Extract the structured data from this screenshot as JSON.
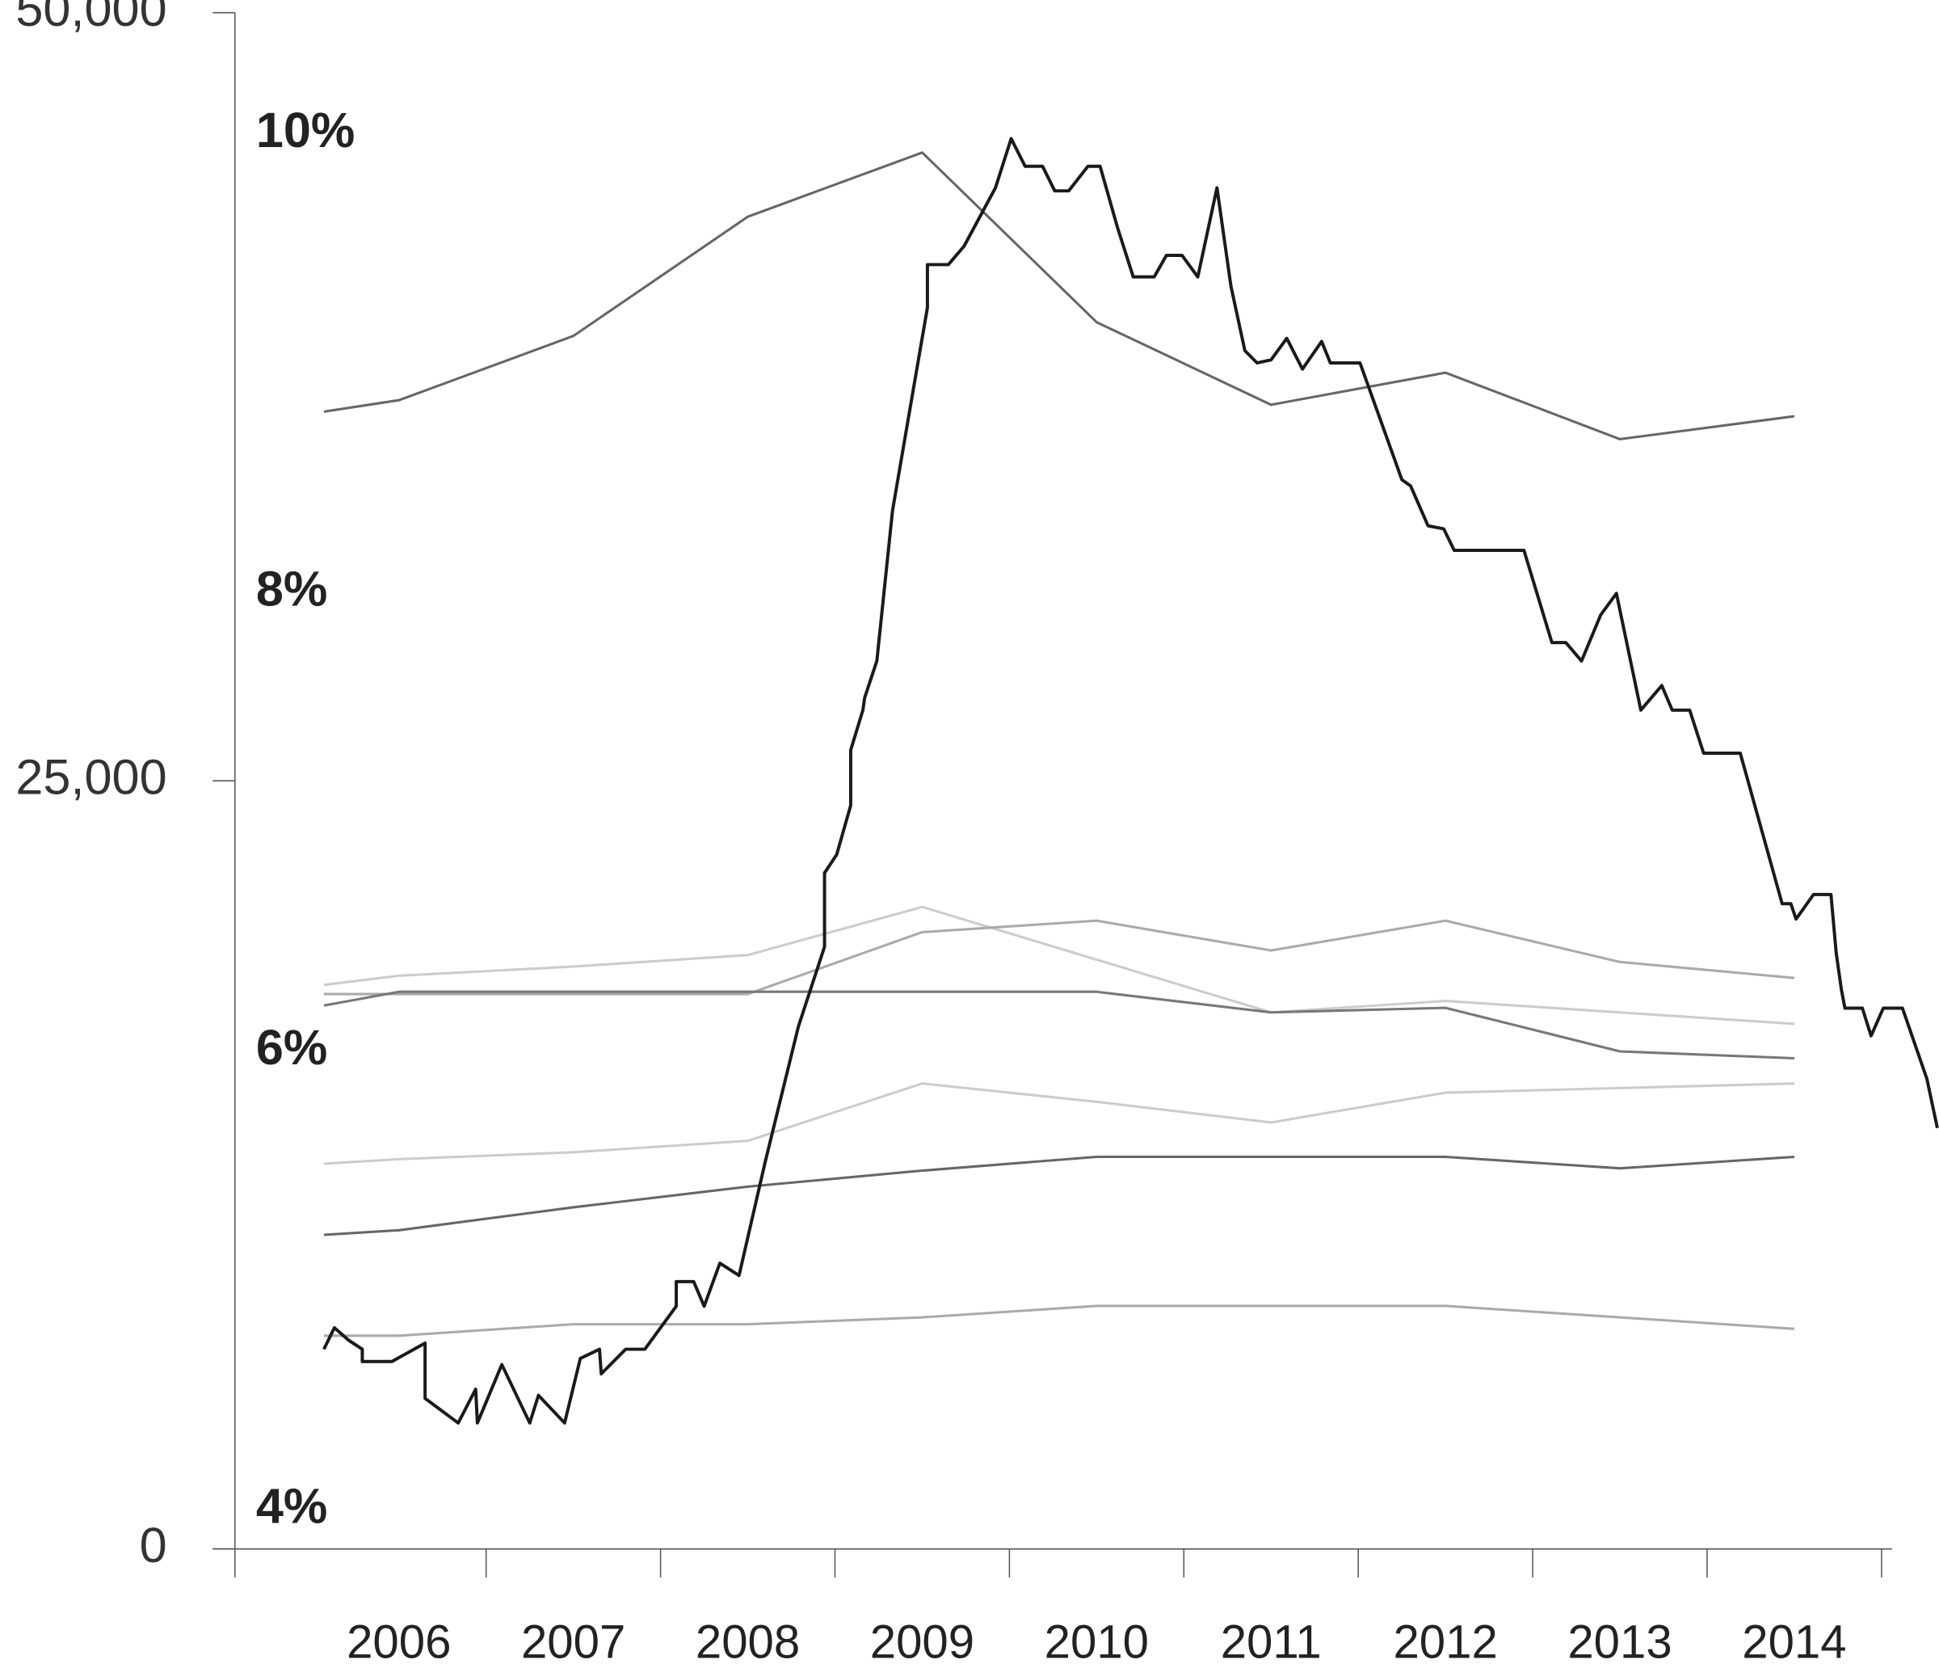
{
  "chart_data": {
    "type": "line",
    "xlim": [
      2005.56,
      2015.06
    ],
    "xticks": [
      {
        "value": 2006.5,
        "label": "2006"
      },
      {
        "value": 2007.5,
        "label": "2007"
      },
      {
        "value": 2008.5,
        "label": "2008"
      },
      {
        "value": 2009.5,
        "label": "2009"
      },
      {
        "value": 2010.5,
        "label": "2010"
      },
      {
        "value": 2011.5,
        "label": "2011"
      },
      {
        "value": 2012.5,
        "label": "2012"
      },
      {
        "value": 2013.5,
        "label": "2013"
      },
      {
        "value": 2014.5,
        "label": "2014"
      }
    ],
    "ylim": [
      0,
      50000
    ],
    "yticks": [
      0,
      {
        "value": 25000,
        "label": "25,000"
      },
      {
        "value": 50000,
        "label": "50,000"
      }
    ],
    "y2lim": [
      3.83,
      10.53
    ],
    "y2ticks": [
      {
        "value": 4,
        "label": "4%"
      },
      {
        "value": 6,
        "label": "6%"
      },
      {
        "value": 8,
        "label": "8%"
      },
      {
        "value": 10,
        "label": "10%"
      }
    ],
    "series": [
      {
        "color": "#666666",
        "axis": "y2",
        "x": [
          2006.07,
          2006.5,
          2007.5,
          2008.5,
          2009.5,
          2010.5,
          2011.5,
          2012.5,
          2013.5,
          2014.5
        ],
        "values": [
          8.79,
          8.84,
          9.12,
          9.64,
          9.92,
          9.18,
          8.82,
          8.96,
          8.67,
          8.77
        ]
      },
      {
        "color": "#cccccc",
        "axis": "y2",
        "x": [
          2006.07,
          2006.5,
          2007.5,
          2008.5,
          2009.5,
          2010.5,
          2011.5,
          2012.5,
          2013.5,
          2014.5
        ],
        "values": [
          6.29,
          6.33,
          6.37,
          6.42,
          6.63,
          6.4,
          6.17,
          6.22,
          6.17,
          6.12
        ]
      },
      {
        "color": "#aaaaaa",
        "axis": "y2",
        "x": [
          2006.07,
          2006.5,
          2007.5,
          2008.5,
          2009.5,
          2010.5,
          2011.5,
          2012.5,
          2013.5,
          2014.5
        ],
        "values": [
          6.25,
          6.25,
          6.25,
          6.25,
          6.52,
          6.57,
          6.44,
          6.57,
          6.39,
          6.32
        ]
      },
      {
        "color": "#777777",
        "axis": "y2",
        "x": [
          2006.07,
          2006.5,
          2007.5,
          2008.5,
          2009.5,
          2010.5,
          2011.5,
          2012.5,
          2013.5,
          2014.5
        ],
        "values": [
          6.2,
          6.26,
          6.26,
          6.26,
          6.26,
          6.26,
          6.17,
          6.19,
          6.0,
          5.97
        ]
      },
      {
        "color": "#cccccc",
        "axis": "y2",
        "x": [
          2006.07,
          2006.5,
          2007.5,
          2008.5,
          2009.5,
          2010.5,
          2011.5,
          2012.5,
          2013.5,
          2014.5
        ],
        "values": [
          5.51,
          5.53,
          5.56,
          5.61,
          5.86,
          5.78,
          5.69,
          5.82,
          5.84,
          5.86
        ]
      },
      {
        "color": "#666666",
        "axis": "y2",
        "x": [
          2006.07,
          2006.5,
          2007.5,
          2008.5,
          2009.5,
          2010.5,
          2011.5,
          2012.5,
          2013.5,
          2014.5
        ],
        "values": [
          5.2,
          5.22,
          5.32,
          5.41,
          5.48,
          5.54,
          5.54,
          5.54,
          5.49,
          5.54
        ]
      },
      {
        "color": "#aaaaaa",
        "axis": "y2",
        "x": [
          2006.07,
          2006.5,
          2007.5,
          2008.5,
          2009.5,
          2010.5,
          2011.5,
          2012.5,
          2013.5,
          2014.5
        ],
        "values": [
          4.76,
          4.76,
          4.81,
          4.81,
          4.84,
          4.89,
          4.89,
          4.89,
          4.84,
          4.79
        ]
      },
      {
        "color": "#1a1a1a",
        "axis": "y",
        "x": [
          2006.07,
          2006.13,
          2006.21,
          2006.29,
          2006.29,
          2006.46,
          2006.65,
          2006.65,
          2006.84,
          2006.94,
          2006.95,
          2007.09,
          2007.25,
          2007.3,
          2007.45,
          2007.54,
          2007.65,
          2007.66,
          2007.8,
          2007.91,
          2008.09,
          2008.09,
          2008.19,
          2008.25,
          2008.34,
          2008.45,
          2008.6,
          2008.79,
          2008.94,
          2008.94,
          2009.01,
          2009.09,
          2009.09,
          2009.16,
          2009.17,
          2009.24,
          2009.33,
          2009.46,
          2009.53,
          2009.53,
          2009.65,
          2009.74,
          2009.92,
          2010.01,
          2010.09,
          2010.19,
          2010.26,
          2010.34,
          2010.45,
          2010.52,
          2010.62,
          2010.71,
          2010.83,
          2010.9,
          2010.99,
          2011.08,
          2011.19,
          2011.27,
          2011.35,
          2011.42,
          2011.5,
          2011.59,
          2011.68,
          2011.79,
          2011.84,
          2012.01,
          2012.25,
          2012.3,
          2012.4,
          2012.49,
          2012.55,
          2012.95,
          2013.11,
          2013.19,
          2013.28,
          2013.39,
          2013.48,
          2013.62,
          2013.74,
          2013.8,
          2013.9,
          2013.98,
          2014.19,
          2014.43,
          2014.48,
          2014.51,
          2014.61,
          2014.71,
          2014.74,
          2014.77,
          2014.79,
          2014.89,
          2014.94,
          2015.01,
          2015.12,
          2015.26,
          2015.32
        ],
        "values": [
          6500,
          7200,
          6800,
          6500,
          6100,
          6100,
          6700,
          4900,
          4100,
          5200,
          4100,
          6000,
          4100,
          5000,
          4100,
          6200,
          6500,
          5700,
          6500,
          6500,
          7900,
          8700,
          8700,
          7900,
          9300,
          8900,
          12600,
          17000,
          19600,
          22000,
          22600,
          24200,
          26000,
          27300,
          27700,
          28900,
          33800,
          38100,
          40400,
          41800,
          41800,
          42400,
          44300,
          45900,
          45000,
          45000,
          44200,
          44200,
          45000,
          45000,
          43000,
          41400,
          41400,
          42100,
          42100,
          41400,
          44300,
          41100,
          39000,
          38600,
          38700,
          39400,
          38400,
          39300,
          38600,
          38600,
          34800,
          34600,
          33300,
          33200,
          32500,
          32500,
          29500,
          29500,
          28900,
          30400,
          31100,
          27300,
          28100,
          27300,
          27300,
          25900,
          25900,
          21000,
          21000,
          20500,
          21300,
          21300,
          19400,
          18200,
          17600,
          17600,
          16700,
          17600,
          17600,
          15300,
          13700
        ]
      }
    ]
  }
}
